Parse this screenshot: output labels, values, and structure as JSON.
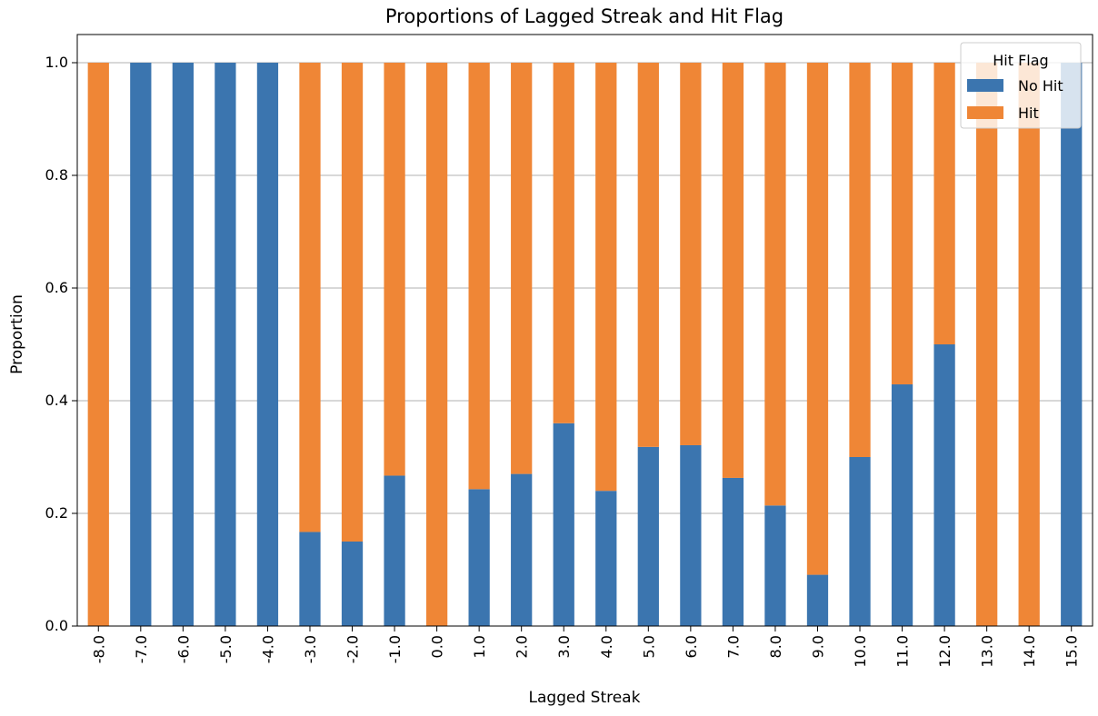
{
  "chart_data": {
    "type": "bar",
    "stacked": true,
    "title": "Proportions of Lagged Streak and Hit Flag",
    "xlabel": "Lagged Streak",
    "ylabel": "Proportion",
    "ylim": [
      0,
      1.05
    ],
    "yticks": [
      "0.0",
      "0.2",
      "0.4",
      "0.6",
      "0.8",
      "1.0"
    ],
    "grid": "horizontal",
    "legend": {
      "title": "Hit Flag",
      "placement": "top-right"
    },
    "categories": [
      "-8.0",
      "-7.0",
      "-6.0",
      "-5.0",
      "-4.0",
      "-3.0",
      "-2.0",
      "-1.0",
      "0.0",
      "1.0",
      "2.0",
      "3.0",
      "4.0",
      "5.0",
      "6.0",
      "7.0",
      "8.0",
      "9.0",
      "10.0",
      "11.0",
      "12.0",
      "13.0",
      "14.0",
      "15.0"
    ],
    "series": [
      {
        "name": "No Hit",
        "color": "#3b75af",
        "values": [
          0.0,
          1.0,
          1.0,
          1.0,
          1.0,
          0.167,
          0.15,
          0.267,
          0.0,
          0.243,
          0.27,
          0.36,
          0.24,
          0.318,
          0.321,
          0.263,
          0.214,
          0.091,
          0.3,
          0.429,
          0.5,
          0.0,
          0.0,
          1.0
        ]
      },
      {
        "name": "Hit",
        "color": "#ef8636",
        "values": [
          1.0,
          0.0,
          0.0,
          0.0,
          0.0,
          0.833,
          0.85,
          0.733,
          1.0,
          0.757,
          0.73,
          0.64,
          0.76,
          0.682,
          0.679,
          0.737,
          0.786,
          0.909,
          0.7,
          0.571,
          0.5,
          1.0,
          1.0,
          0.0
        ]
      }
    ]
  }
}
